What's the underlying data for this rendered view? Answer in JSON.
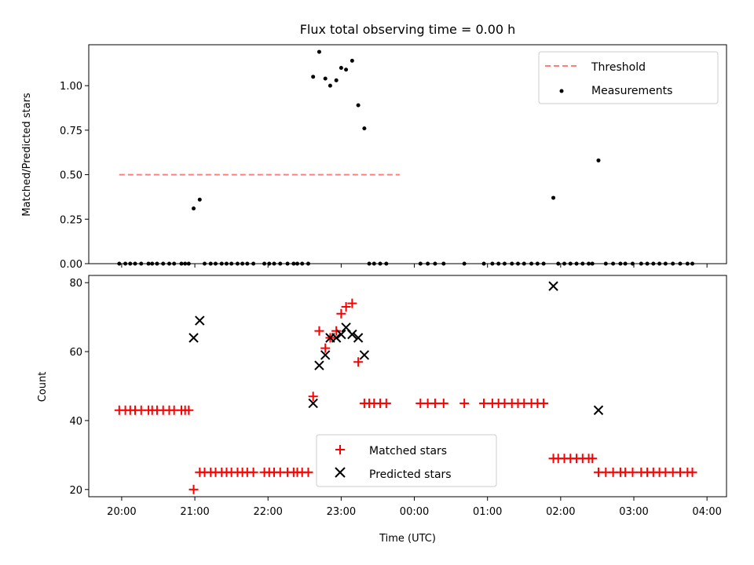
{
  "chart_data": [
    {
      "type": "scatter",
      "title": "Flux total observing time = 0.00 h",
      "xlabel": "",
      "ylabel": "Matched/Predicted stars",
      "xlim": [
        "19:33",
        "04:16"
      ],
      "ylim": [
        0,
        1.23
      ],
      "yticks": [
        0.0,
        0.25,
        0.5,
        0.75,
        1.0
      ],
      "ytick_labels": [
        "0.00",
        "0.25",
        "0.50",
        "0.75",
        "1.00"
      ],
      "xticks": [
        "20:00",
        "21:00",
        "22:00",
        "23:00",
        "00:00",
        "01:00",
        "02:00",
        "03:00",
        "04:00"
      ],
      "grid": false,
      "legend_position": "top-right",
      "threshold": {
        "name": "Threshold",
        "value": 0.5,
        "x_range": [
          "19:58",
          "23:48"
        ],
        "color": "#ff7f7f"
      },
      "series": [
        {
          "name": "Measurements",
          "color": "#000000",
          "points": [
            [
              "19:58",
              0
            ],
            [
              "20:03",
              0
            ],
            [
              "20:07",
              0
            ],
            [
              "20:11",
              0
            ],
            [
              "20:16",
              0
            ],
            [
              "20:22",
              0
            ],
            [
              "20:25",
              0
            ],
            [
              "20:29",
              0
            ],
            [
              "20:34",
              0
            ],
            [
              "20:39",
              0
            ],
            [
              "20:43",
              0
            ],
            [
              "20:49",
              0
            ],
            [
              "20:52",
              0
            ],
            [
              "20:55",
              0
            ],
            [
              "20:59",
              0.31
            ],
            [
              "21:04",
              0.36
            ],
            [
              "21:08",
              0
            ],
            [
              "21:13",
              0
            ],
            [
              "21:17",
              0
            ],
            [
              "21:22",
              0
            ],
            [
              "21:26",
              0
            ],
            [
              "21:30",
              0
            ],
            [
              "21:35",
              0
            ],
            [
              "21:39",
              0
            ],
            [
              "21:43",
              0
            ],
            [
              "21:48",
              0
            ],
            [
              "21:57",
              0
            ],
            [
              "22:01",
              0
            ],
            [
              "22:05",
              0
            ],
            [
              "22:10",
              0
            ],
            [
              "22:16",
              0
            ],
            [
              "22:21",
              0
            ],
            [
              "22:24",
              0
            ],
            [
              "22:28",
              0
            ],
            [
              "22:33",
              0
            ],
            [
              "22:37",
              1.05
            ],
            [
              "22:42",
              1.19
            ],
            [
              "22:47",
              1.04
            ],
            [
              "22:51",
              1.0
            ],
            [
              "22:56",
              1.03
            ],
            [
              "23:00",
              1.1
            ],
            [
              "23:04",
              1.09
            ],
            [
              "23:09",
              1.14
            ],
            [
              "23:14",
              0.89
            ],
            [
              "23:19",
              0.76
            ],
            [
              "23:23",
              0
            ],
            [
              "23:27",
              0
            ],
            [
              "23:32",
              0
            ],
            [
              "23:37",
              0
            ],
            [
              "00:05",
              0
            ],
            [
              "00:11",
              0
            ],
            [
              "00:17",
              0
            ],
            [
              "00:24",
              0
            ],
            [
              "00:41",
              0
            ],
            [
              "00:57",
              0
            ],
            [
              "01:04",
              0
            ],
            [
              "01:09",
              0
            ],
            [
              "01:14",
              0
            ],
            [
              "01:20",
              0
            ],
            [
              "01:25",
              0
            ],
            [
              "01:30",
              0
            ],
            [
              "01:36",
              0
            ],
            [
              "01:41",
              0
            ],
            [
              "01:46",
              0
            ],
            [
              "01:54",
              0.37
            ],
            [
              "01:58",
              0
            ],
            [
              "02:03",
              0
            ],
            [
              "02:08",
              0
            ],
            [
              "02:13",
              0
            ],
            [
              "02:18",
              0
            ],
            [
              "02:23",
              0
            ],
            [
              "02:26",
              0
            ],
            [
              "02:31",
              0.58
            ],
            [
              "02:37",
              0
            ],
            [
              "02:43",
              0
            ],
            [
              "02:49",
              0
            ],
            [
              "02:53",
              0
            ],
            [
              "02:59",
              0
            ],
            [
              "03:06",
              0
            ],
            [
              "03:11",
              0
            ],
            [
              "03:16",
              0
            ],
            [
              "03:21",
              0
            ],
            [
              "03:26",
              0
            ],
            [
              "03:32",
              0
            ],
            [
              "03:38",
              0
            ],
            [
              "03:44",
              0
            ],
            [
              "03:48",
              0
            ]
          ]
        }
      ]
    },
    {
      "type": "scatter",
      "title": "",
      "xlabel": "Time (UTC)",
      "ylabel": "Count",
      "xlim": [
        "19:33",
        "04:16"
      ],
      "ylim": [
        17.9,
        82.1
      ],
      "yticks": [
        20,
        40,
        60,
        80
      ],
      "ytick_labels": [
        "20",
        "40",
        "60",
        "80"
      ],
      "xticks": [
        "20:00",
        "21:00",
        "22:00",
        "23:00",
        "00:00",
        "01:00",
        "02:00",
        "03:00",
        "04:00"
      ],
      "xtick_labels": [
        "20:00",
        "21:00",
        "22:00",
        "23:00",
        "00:00",
        "01:00",
        "02:00",
        "03:00",
        "04:00"
      ],
      "grid": false,
      "legend_position": "lower-center",
      "series": [
        {
          "name": "Matched stars",
          "marker": "plus",
          "color": "#ff0000",
          "points": [
            [
              "19:58",
              43
            ],
            [
              "20:03",
              43
            ],
            [
              "20:07",
              43
            ],
            [
              "20:11",
              43
            ],
            [
              "20:16",
              43
            ],
            [
              "20:22",
              43
            ],
            [
              "20:25",
              43
            ],
            [
              "20:29",
              43
            ],
            [
              "20:34",
              43
            ],
            [
              "20:39",
              43
            ],
            [
              "20:43",
              43
            ],
            [
              "20:49",
              43
            ],
            [
              "20:52",
              43
            ],
            [
              "20:55",
              43
            ],
            [
              "20:59",
              20
            ],
            [
              "21:04",
              25
            ],
            [
              "21:08",
              25
            ],
            [
              "21:13",
              25
            ],
            [
              "21:17",
              25
            ],
            [
              "21:22",
              25
            ],
            [
              "21:26",
              25
            ],
            [
              "21:30",
              25
            ],
            [
              "21:35",
              25
            ],
            [
              "21:39",
              25
            ],
            [
              "21:43",
              25
            ],
            [
              "21:48",
              25
            ],
            [
              "21:57",
              25
            ],
            [
              "22:01",
              25
            ],
            [
              "22:05",
              25
            ],
            [
              "22:10",
              25
            ],
            [
              "22:16",
              25
            ],
            [
              "22:21",
              25
            ],
            [
              "22:24",
              25
            ],
            [
              "22:28",
              25
            ],
            [
              "22:33",
              25
            ],
            [
              "22:37",
              47
            ],
            [
              "22:42",
              66
            ],
            [
              "22:47",
              61
            ],
            [
              "22:51",
              64
            ],
            [
              "22:56",
              66
            ],
            [
              "23:00",
              71
            ],
            [
              "23:04",
              73
            ],
            [
              "23:09",
              74
            ],
            [
              "23:14",
              57
            ],
            [
              "23:19",
              45
            ],
            [
              "23:23",
              45
            ],
            [
              "23:27",
              45
            ],
            [
              "23:32",
              45
            ],
            [
              "23:37",
              45
            ],
            [
              "00:05",
              45
            ],
            [
              "00:11",
              45
            ],
            [
              "00:17",
              45
            ],
            [
              "00:24",
              45
            ],
            [
              "00:41",
              45
            ],
            [
              "00:57",
              45
            ],
            [
              "01:04",
              45
            ],
            [
              "01:09",
              45
            ],
            [
              "01:14",
              45
            ],
            [
              "01:20",
              45
            ],
            [
              "01:25",
              45
            ],
            [
              "01:30",
              45
            ],
            [
              "01:36",
              45
            ],
            [
              "01:41",
              45
            ],
            [
              "01:46",
              45
            ],
            [
              "01:54",
              29
            ],
            [
              "01:58",
              29
            ],
            [
              "02:03",
              29
            ],
            [
              "02:08",
              29
            ],
            [
              "02:13",
              29
            ],
            [
              "02:18",
              29
            ],
            [
              "02:23",
              29
            ],
            [
              "02:26",
              29
            ],
            [
              "02:31",
              25
            ],
            [
              "02:37",
              25
            ],
            [
              "02:43",
              25
            ],
            [
              "02:49",
              25
            ],
            [
              "02:53",
              25
            ],
            [
              "02:59",
              25
            ],
            [
              "03:06",
              25
            ],
            [
              "03:11",
              25
            ],
            [
              "03:16",
              25
            ],
            [
              "03:21",
              25
            ],
            [
              "03:26",
              25
            ],
            [
              "03:32",
              25
            ],
            [
              "03:38",
              25
            ],
            [
              "03:44",
              25
            ],
            [
              "03:48",
              25
            ]
          ]
        },
        {
          "name": "Predicted stars",
          "marker": "x",
          "color": "#000000",
          "points": [
            [
              "20:59",
              64
            ],
            [
              "21:04",
              69
            ],
            [
              "22:37",
              45
            ],
            [
              "22:42",
              56
            ],
            [
              "22:47",
              59
            ],
            [
              "22:51",
              64
            ],
            [
              "22:56",
              64
            ],
            [
              "23:00",
              65
            ],
            [
              "23:04",
              67
            ],
            [
              "23:09",
              65
            ],
            [
              "23:14",
              64
            ],
            [
              "23:19",
              59
            ],
            [
              "01:54",
              79
            ],
            [
              "02:31",
              43
            ]
          ]
        }
      ]
    }
  ]
}
